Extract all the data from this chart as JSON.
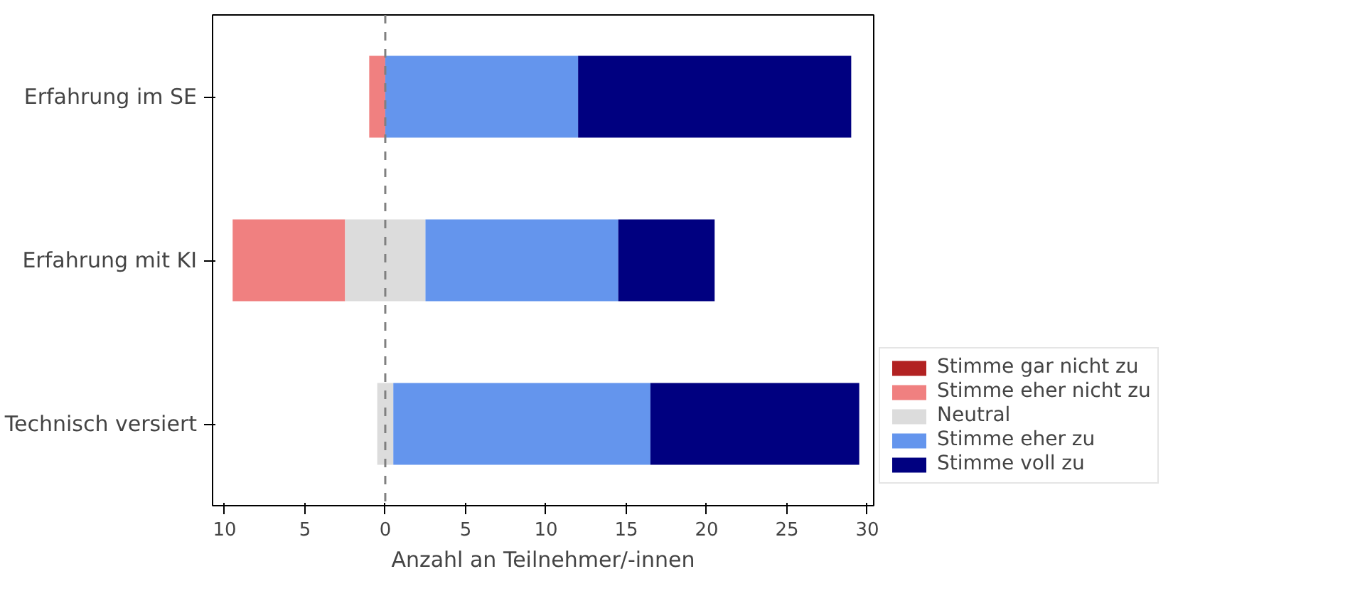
{
  "chart_data": {
    "type": "bar",
    "orientation": "horizontal",
    "xlabel": "Anzahl an Teilnehmer/-innen",
    "categories": [
      "Erfahrung im SE",
      "Erfahrung mit KI",
      "Technisch versiert"
    ],
    "series": [
      {
        "name": "Stimme gar nicht zu",
        "color": "#b22222",
        "values": [
          0,
          0,
          0
        ]
      },
      {
        "name": "Stimme eher nicht zu",
        "color": "#f08080",
        "values": [
          1,
          7,
          0
        ],
        "base": [
          -1,
          -9.5,
          null
        ]
      },
      {
        "name": "Neutral",
        "color": "#dcdcdc",
        "values": [
          0,
          5,
          1
        ],
        "base": [
          null,
          -2.5,
          -0.5
        ]
      },
      {
        "name": "Stimme eher zu",
        "color": "#6495ed",
        "values": [
          12,
          12,
          16
        ],
        "base": [
          0,
          2.5,
          0.5
        ]
      },
      {
        "name": "Stimme voll zu",
        "color": "#000080",
        "values": [
          17,
          6,
          13
        ],
        "base": [
          12,
          14.5,
          16.5
        ]
      }
    ],
    "xlim": [
      -10.75,
      30.4
    ],
    "xticks": [
      {
        "value": -10,
        "label": "10"
      },
      {
        "value": -5,
        "label": "5"
      },
      0,
      5,
      10,
      15,
      20,
      25,
      30
    ],
    "ref_lines": [
      {
        "axis": "x",
        "value": 0,
        "color": "#808080",
        "line_style": "dashed"
      }
    ],
    "legend": "bottom right"
  }
}
